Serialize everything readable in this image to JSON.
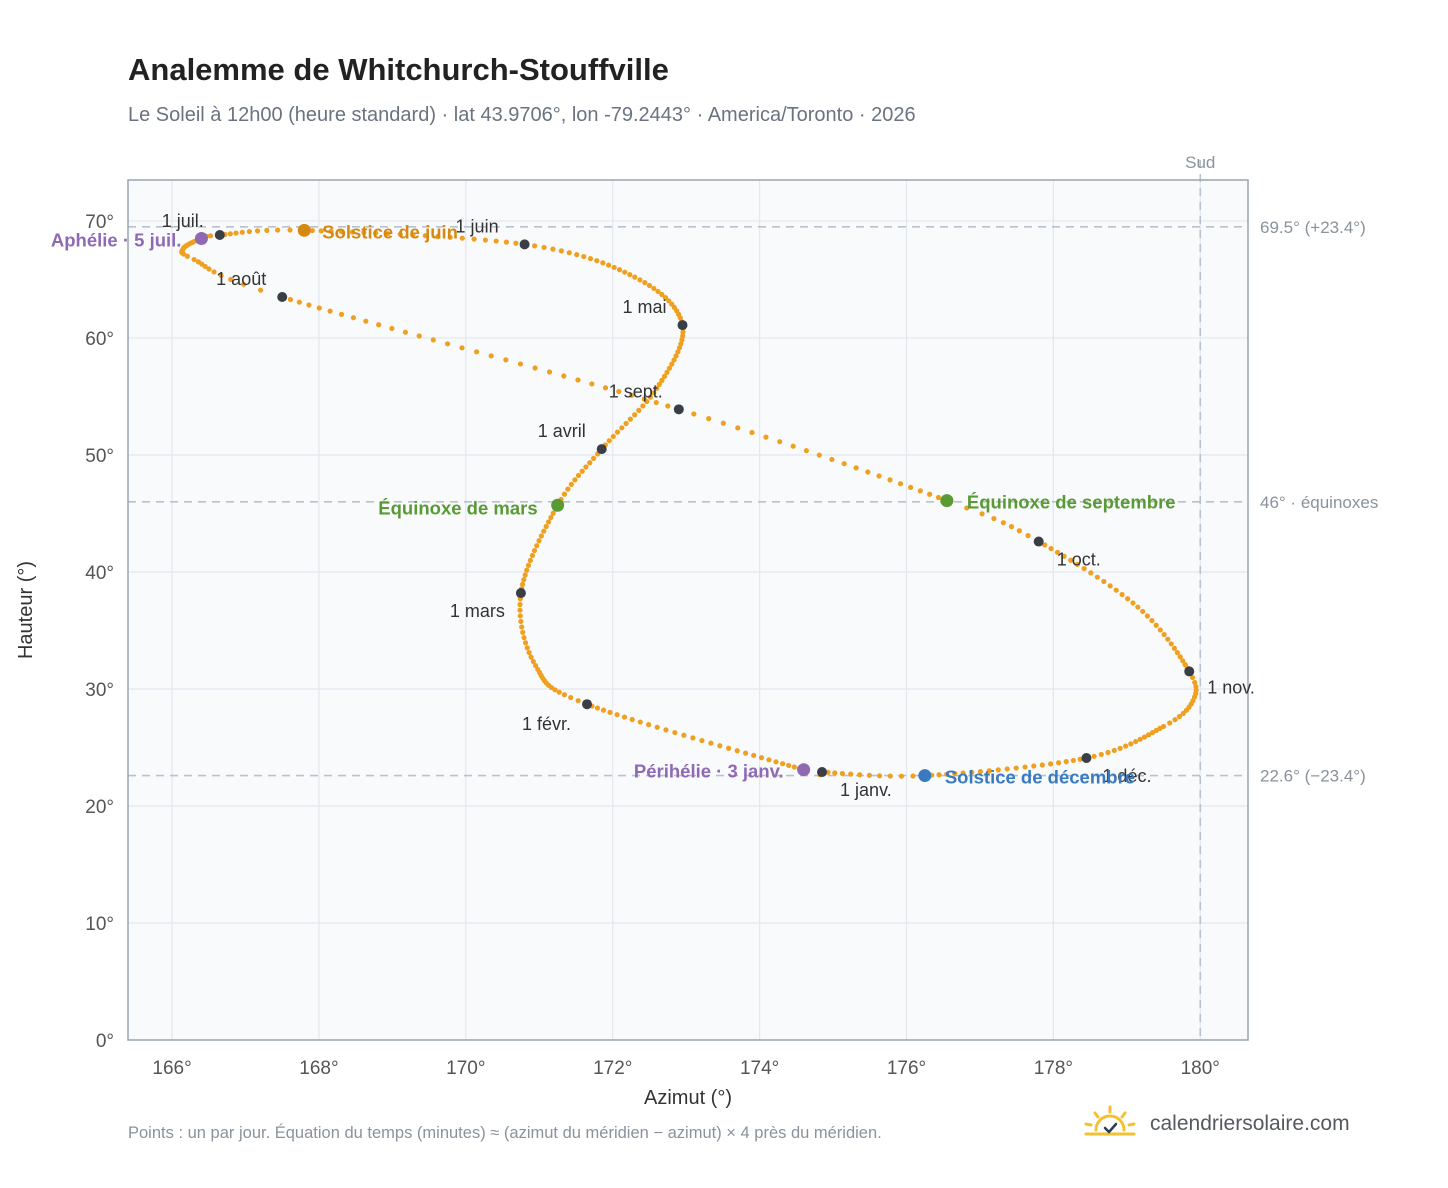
{
  "header": {
    "title": "Analemme de Whitchurch-Stouffville",
    "subtitle": "Le Soleil à 12h00 (heure standard) · lat 43.9706°, lon -79.2443° · America/Toronto · 2026"
  },
  "footer": {
    "note": "Points : un par jour. Équation du temps (minutes) ≈ (azimut du méridien − azimut) × 4 près du méridien.",
    "brand": "calendriersolaire.com"
  },
  "colors": {
    "curve": "#f0a020",
    "month_point": "#3a3f47",
    "solstice_june": "#d68910",
    "solstice_december": "#3a7abf",
    "equinox": "#5a9a35",
    "aphelion_perihelion": "#8e6ab5",
    "reference_line": "#b8c2cc",
    "plot_background": "#f8fafc"
  },
  "chart_data": {
    "type": "scatter",
    "xlabel": "Azimut (°)",
    "ylabel": "Hauteur (°)",
    "xlim": [
      165.4,
      180.65
    ],
    "ylim": [
      0,
      73.5
    ],
    "xticks": [
      166,
      168,
      170,
      172,
      174,
      176,
      178,
      180
    ],
    "xtick_labels": [
      "166°",
      "168°",
      "170°",
      "172°",
      "174°",
      "176°",
      "178°",
      "180°"
    ],
    "yticks": [
      0,
      10,
      20,
      30,
      40,
      50,
      60,
      70
    ],
    "ytick_labels": [
      "0°",
      "10°",
      "20°",
      "30°",
      "40°",
      "50°",
      "60°",
      "70°"
    ],
    "grid": true,
    "reference_lines": [
      {
        "axis": "y",
        "value": 69.5,
        "label": "69.5° (+23.4°)"
      },
      {
        "axis": "y",
        "value": 46.0,
        "label": "46° · équinoxes"
      },
      {
        "axis": "y",
        "value": 22.6,
        "label": "22.6° (−23.4°)"
      },
      {
        "axis": "x",
        "value": 180,
        "label": "Sud"
      }
    ],
    "month_points": [
      {
        "label": "1 janv.",
        "az": 174.85,
        "alt": 22.9
      },
      {
        "label": "1 févr.",
        "az": 171.65,
        "alt": 28.7
      },
      {
        "label": "1 mars",
        "az": 170.75,
        "alt": 38.2
      },
      {
        "label": "1 avril",
        "az": 171.85,
        "alt": 50.5
      },
      {
        "label": "1 mai",
        "az": 172.95,
        "alt": 61.1
      },
      {
        "label": "1 juin",
        "az": 170.8,
        "alt": 68.0
      },
      {
        "label": "1 juil.",
        "az": 166.65,
        "alt": 68.8
      },
      {
        "label": "1 août",
        "az": 167.5,
        "alt": 63.5
      },
      {
        "label": "1 sept.",
        "az": 172.9,
        "alt": 53.9
      },
      {
        "label": "1 oct.",
        "az": 177.8,
        "alt": 42.6
      },
      {
        "label": "1 nov.",
        "az": 179.85,
        "alt": 31.5
      },
      {
        "label": "1 déc.",
        "az": 178.45,
        "alt": 24.1
      }
    ],
    "key_points": [
      {
        "label": "Solstice de juin",
        "az": 167.8,
        "alt": 69.2,
        "kind": "solstice_june"
      },
      {
        "label": "Solstice de décembre",
        "az": 176.25,
        "alt": 22.6,
        "kind": "solstice_december"
      },
      {
        "label": "Équinoxe de mars",
        "az": 171.25,
        "alt": 45.7,
        "kind": "equinox"
      },
      {
        "label": "Équinoxe de septembre",
        "az": 176.55,
        "alt": 46.1,
        "kind": "equinox"
      },
      {
        "label": "Aphélie · 5 juil.",
        "az": 166.4,
        "alt": 68.5,
        "kind": "aphelion_perihelion"
      },
      {
        "label": "Périhélie · 3 janv.",
        "az": 174.6,
        "alt": 23.1,
        "kind": "aphelion_perihelion"
      }
    ],
    "curve_anchor_points": [
      {
        "day": 1,
        "az": 174.85,
        "alt": 22.9
      },
      {
        "day": 3,
        "az": 174.6,
        "alt": 23.1
      },
      {
        "day": 32,
        "az": 171.65,
        "alt": 28.7
      },
      {
        "day": 46,
        "az": 170.95,
        "alt": 32.0
      },
      {
        "day": 60,
        "az": 170.75,
        "alt": 38.2
      },
      {
        "day": 79,
        "az": 171.25,
        "alt": 45.7
      },
      {
        "day": 91,
        "az": 171.85,
        "alt": 50.5
      },
      {
        "day": 105,
        "az": 172.6,
        "alt": 55.7
      },
      {
        "day": 121,
        "az": 172.95,
        "alt": 61.1
      },
      {
        "day": 136,
        "az": 172.3,
        "alt": 65.2
      },
      {
        "day": 152,
        "az": 170.8,
        "alt": 68.0
      },
      {
        "day": 172,
        "az": 167.8,
        "alt": 69.2
      },
      {
        "day": 182,
        "az": 166.65,
        "alt": 68.8
      },
      {
        "day": 186,
        "az": 166.4,
        "alt": 68.5
      },
      {
        "day": 197,
        "az": 166.15,
        "alt": 67.6
      },
      {
        "day": 203,
        "az": 166.3,
        "alt": 66.7
      },
      {
        "day": 213,
        "az": 167.5,
        "alt": 63.5
      },
      {
        "day": 244,
        "az": 172.9,
        "alt": 53.9
      },
      {
        "day": 266,
        "az": 176.55,
        "alt": 46.1
      },
      {
        "day": 274,
        "az": 177.8,
        "alt": 42.6
      },
      {
        "day": 290,
        "az": 179.15,
        "alt": 37.0
      },
      {
        "day": 305,
        "az": 179.85,
        "alt": 31.5
      },
      {
        "day": 312,
        "az": 179.9,
        "alt": 29.0
      },
      {
        "day": 320,
        "az": 179.5,
        "alt": 26.8
      },
      {
        "day": 335,
        "az": 178.45,
        "alt": 24.1
      },
      {
        "day": 355,
        "az": 176.25,
        "alt": 22.6
      },
      {
        "day": 366,
        "az": 174.85,
        "alt": 22.9
      }
    ]
  }
}
